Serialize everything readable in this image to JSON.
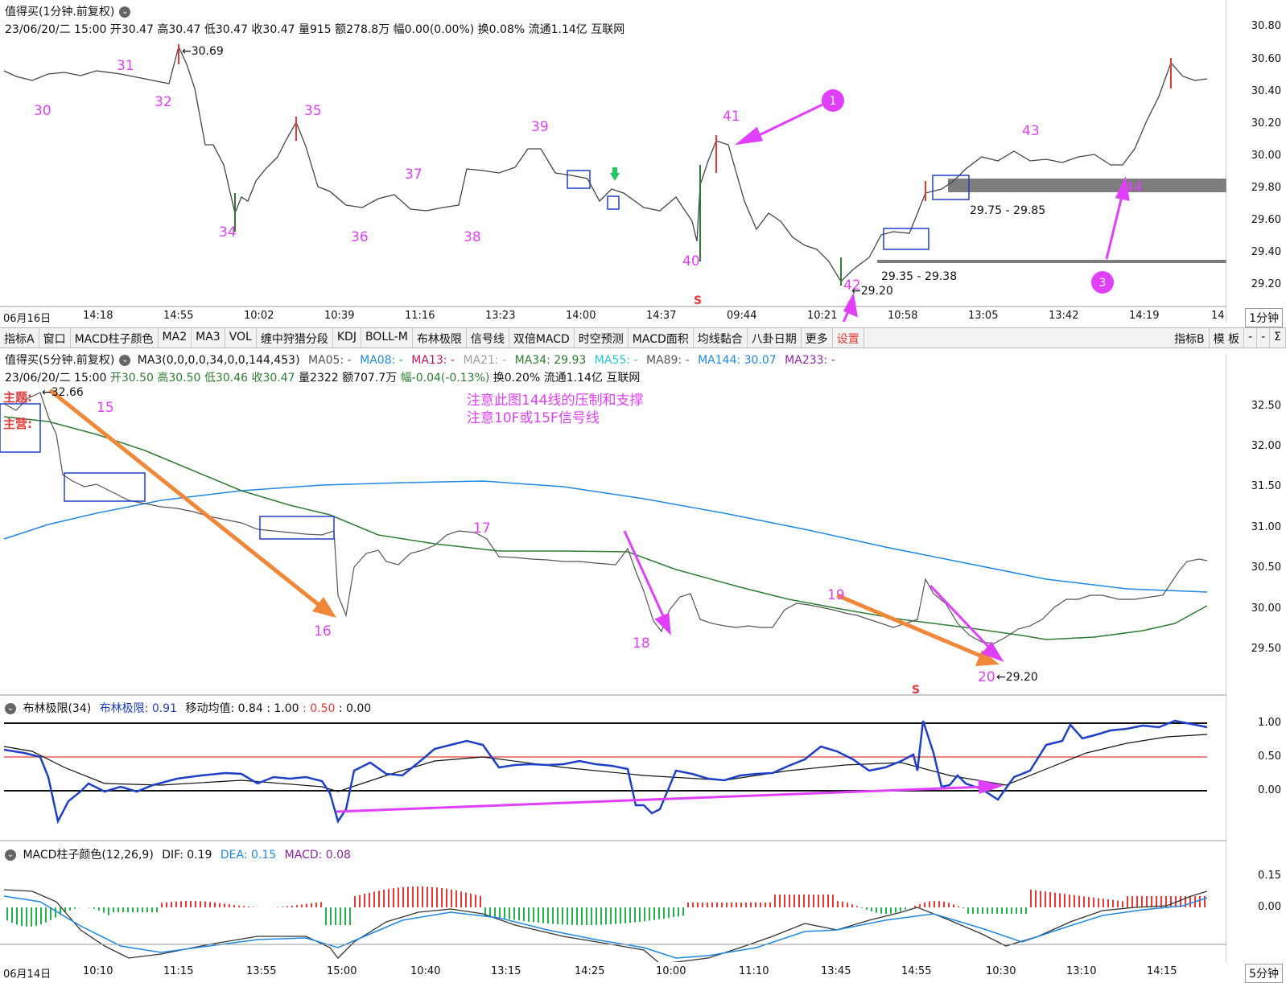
{
  "panel1": {
    "title": "值得买(1分钟.前复权)",
    "info": "23/06/20/二 15:00 开30.47 高30.47 低30.47 收30.47 量915 额278.8万 幅0.00(0.00%) 换0.08% 流通1.14亿 互联网",
    "yticks": [
      "30.80",
      "30.60",
      "30.40",
      "30.20",
      "30.00",
      "29.80",
      "29.60",
      "29.40",
      "29.20"
    ],
    "xlabels": [
      "06月16日",
      "14:18",
      "14:55",
      "10:02",
      "10:39",
      "11:16",
      "13:23",
      "14:00",
      "14:37",
      "09:44",
      "10:21",
      "10:58",
      "13:05",
      "13:42",
      "14:19",
      "14"
    ],
    "period": "1分钟",
    "labels": {
      "high": "30.69",
      "low": "29.20",
      "zone1": "29.75 - 29.85",
      "zone2": "29.35 - 29.38",
      "n30": "30",
      "n31": "31",
      "n32": "32",
      "n34": "34",
      "n35": "35",
      "n36": "36",
      "n37": "37",
      "n38": "38",
      "n39": "39",
      "n40": "40",
      "n41": "41",
      "n42": "42",
      "n43": "43",
      "n44": "44",
      "s_mark": "S"
    },
    "circles": [
      "1",
      "2",
      "3"
    ]
  },
  "toolbar": {
    "items": [
      "指标A",
      "窗口",
      "MACD柱子颜色",
      "MA2",
      "MA3",
      "VOL",
      "缠中狩猎分段",
      "KDJ",
      "BOLL-M",
      "布林极限",
      "信号线",
      "双倍MACD",
      "时空预测",
      "MACD面积",
      "均线黏合",
      "八卦日期",
      "更多",
      "设置"
    ],
    "right_items": [
      "指标B",
      "模 板",
      "-",
      "-",
      "Σ"
    ]
  },
  "panel2": {
    "title": "值得买(5分钟.前复权)",
    "ma_title": "MA3(0,0,0,0,34,0,0,144,453)",
    "ma": [
      {
        "label": "MA05: -",
        "color": "#555555"
      },
      {
        "label": "MA08: -",
        "color": "#1e88e5"
      },
      {
        "label": "MA13: -",
        "color": "#c2185b"
      },
      {
        "label": "MA21: -",
        "color": "#9e9e9e"
      },
      {
        "label": "MA34: 29.93",
        "color": "#2e7d32"
      },
      {
        "label": "MA55: -",
        "color": "#26c6da"
      },
      {
        "label": "MA89: -",
        "color": "#555555"
      },
      {
        "label": "MA144: 30.07",
        "color": "#1e88e5"
      },
      {
        "label": "MA233: -",
        "color": "#8e24aa"
      }
    ],
    "info_date": "23/06/20/二 15:00",
    "info_open": "开30.50",
    "info_high": "高30.50",
    "info_low": "低30.46",
    "info_close": "收30.47",
    "info_rest": "量2322 额707.7万",
    "info_range": "幅-0.04(-0.13%)",
    "info_tail": "换0.20% 流通1.14亿 互联网",
    "side_labels": [
      "主题:",
      "主营:"
    ],
    "note1": "注意此图144线的压制和支撑",
    "note2": "注意10F或15F信号线",
    "yticks": [
      "32.50",
      "32.00",
      "31.50",
      "31.00",
      "30.50",
      "30.00",
      "29.50"
    ],
    "labels": {
      "high": "32.66",
      "low": "29.20",
      "n15": "15",
      "n16": "16",
      "n17": "17",
      "n18": "18",
      "n19": "19",
      "n20": "20",
      "s_mark": "S"
    }
  },
  "panel3": {
    "title": "布林极限(34)",
    "v1_label": "布林极限: 0.91",
    "v2_label": "移动均值: 0.84",
    "v3": ": 1.00",
    "v4": ": 0.50",
    "v5": ": 0.00",
    "yticks": [
      "1.00",
      "0.50",
      "0.00"
    ]
  },
  "panel4": {
    "title": "MACD柱子颜色(12,26,9)",
    "dif": "DIF: 0.19",
    "dea": "DEA: 0.15",
    "macd": "MACD: 0.08",
    "yticks": [
      "0.15",
      "0.00"
    ],
    "xlabels": [
      "06月14日",
      "10:10",
      "11:15",
      "13:55",
      "15:00",
      "10:40",
      "13:15",
      "14:25",
      "10:00",
      "11:10",
      "13:45",
      "14:55",
      "10:30",
      "13:10",
      "14:15"
    ],
    "period": "5分钟"
  },
  "colors": {
    "up": "#e53935",
    "down": "#2e7d32",
    "annot": "#e040fb",
    "orange": "#f0883a",
    "blue_line": "#1565c0"
  }
}
